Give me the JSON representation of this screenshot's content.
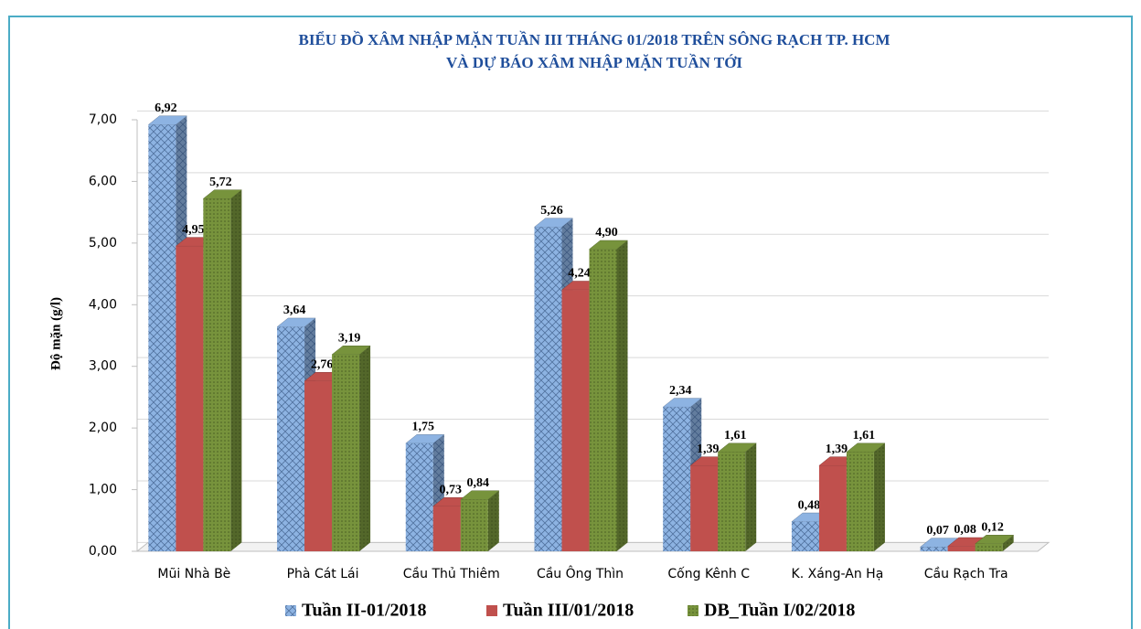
{
  "chart_data": {
    "type": "bar3d",
    "title": "BIỂU ĐỒ XÂM NHẬP MẶN TUẦN III THÁNG 01/2018 TRÊN SÔNG RẠCH TP. HCM",
    "subtitle": "VÀ DỰ BÁO XÂM NHẬP MẶN TUẦN TỚI",
    "y_label": "Độ mặn (g/l)",
    "categories": [
      "Mũi Nhà Bè",
      "Phà Cát Lái",
      "Cầu Thủ Thiêm",
      "Cầu Ông Thìn",
      "Cống Kênh C",
      "K. Xáng-An Hạ",
      "Cầu Rạch Tra"
    ],
    "series": [
      {
        "name": "Tuần II-01/2018",
        "color": "#8db3e2",
        "values": [
          6.92,
          3.64,
          1.75,
          5.26,
          2.34,
          0.48,
          0.07
        ],
        "value_labels": [
          "6,92",
          "3,64",
          "1,75",
          "5,26",
          "2,34",
          "0,48",
          "0,07"
        ]
      },
      {
        "name": "Tuần III/01/2018",
        "color": "#c0504d",
        "values": [
          4.95,
          2.76,
          0.73,
          4.24,
          1.39,
          1.39,
          0.08
        ],
        "value_labels": [
          "4,95",
          "2,76",
          "0,73",
          "4,24",
          "1,39",
          "1,39",
          "0,08"
        ]
      },
      {
        "name": "DB_Tuần I/02/2018",
        "color": "#77933c",
        "values": [
          5.72,
          3.19,
          0.84,
          4.9,
          1.61,
          1.61,
          0.12
        ],
        "value_labels": [
          "5,72",
          "3,19",
          "0,84",
          "4,90",
          "1,61",
          "1,61",
          "0,12"
        ]
      }
    ],
    "ylim": [
      0,
      7
    ],
    "yticks": [
      {
        "value": 0,
        "label": "0,00"
      },
      {
        "value": 1,
        "label": "1,00"
      },
      {
        "value": 2,
        "label": "2,00"
      },
      {
        "value": 3,
        "label": "3,00"
      },
      {
        "value": 4,
        "label": "4,00"
      },
      {
        "value": 5,
        "label": "5,00"
      },
      {
        "value": 6,
        "label": "6,00"
      },
      {
        "value": 7,
        "label": "7,00"
      }
    ],
    "grid": true,
    "legend": "bottom"
  }
}
